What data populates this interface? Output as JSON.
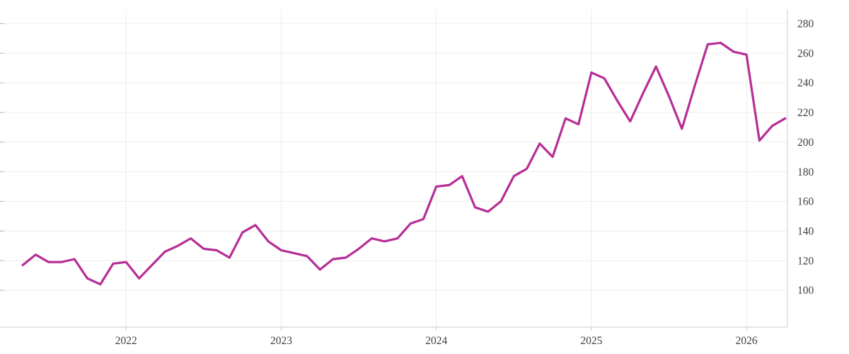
{
  "chart_data": {
    "type": "line",
    "title": "",
    "xlabel": "",
    "ylabel": "",
    "grid": true,
    "legend_position": "none",
    "x": [
      "2021-05",
      "2021-06",
      "2021-07",
      "2021-08",
      "2021-09",
      "2021-10",
      "2021-11",
      "2021-12",
      "2022-01",
      "2022-02",
      "2022-03",
      "2022-04",
      "2022-05",
      "2022-06",
      "2022-07",
      "2022-08",
      "2022-09",
      "2022-10",
      "2022-11",
      "2022-12",
      "2023-01",
      "2023-02",
      "2023-03",
      "2023-04",
      "2023-05",
      "2023-06",
      "2023-07",
      "2023-08",
      "2023-09",
      "2023-10",
      "2023-11",
      "2023-12",
      "2024-01",
      "2024-02",
      "2024-03",
      "2024-04",
      "2024-05",
      "2024-06",
      "2024-07",
      "2024-08",
      "2024-09",
      "2024-10",
      "2024-11",
      "2024-12",
      "2025-01",
      "2025-02",
      "2025-03",
      "2025-04",
      "2025-05",
      "2025-06",
      "2025-07",
      "2025-08",
      "2025-09",
      "2025-10",
      "2025-11",
      "2025-12",
      "2026-01",
      "2026-02",
      "2026-03",
      "2026-04"
    ],
    "values": [
      117,
      124,
      119,
      119,
      121,
      108,
      104,
      118,
      119,
      108,
      117,
      126,
      130,
      135,
      128,
      127,
      122,
      139,
      144,
      133,
      127,
      125,
      123,
      114,
      121,
      122,
      128,
      135,
      133,
      135,
      145,
      148,
      170,
      171,
      177,
      156,
      153,
      160,
      177,
      182,
      199,
      190,
      216,
      212,
      247,
      243,
      228,
      214,
      233,
      251,
      231,
      209,
      238,
      266,
      267,
      261,
      259,
      201,
      211,
      216
    ],
    "x_tick_labels": [
      "2022",
      "2023",
      "2024",
      "2025",
      "2026"
    ],
    "y_ticks": [
      280,
      260,
      240,
      220,
      200,
      180,
      160,
      140,
      120,
      100
    ],
    "ylim": [
      75,
      289
    ],
    "style": {
      "line_color": "#b62e96",
      "grid_color": "#ededed",
      "axis_color": "#cccccc",
      "tick_color": "#b3b3b3",
      "label_color": "#404040",
      "background": "#ffffff"
    }
  }
}
